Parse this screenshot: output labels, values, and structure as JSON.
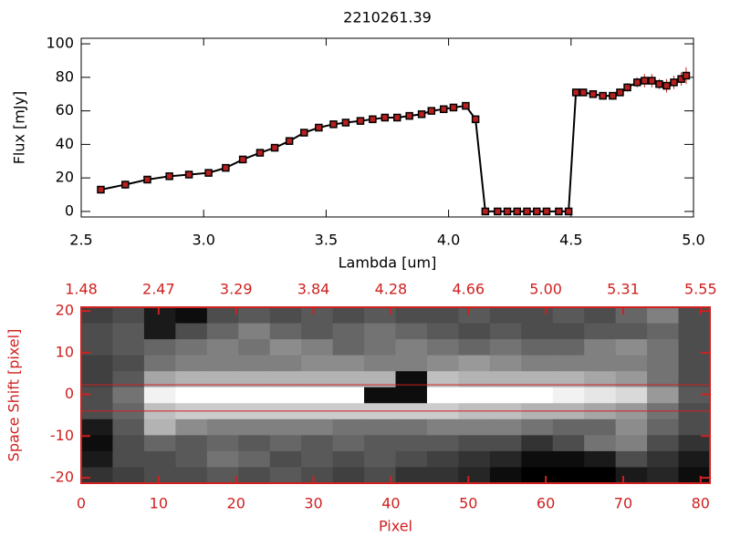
{
  "chart_data": [
    {
      "type": "line",
      "title": "2210261.39",
      "x_label": "Lambda [um]",
      "y_label": "Flux [mJy]",
      "xlim": [
        2.5,
        5.0
      ],
      "ylim": [
        -3.3,
        103.3
      ],
      "xticks": [
        {
          "value": 2.5,
          "label": "2.5"
        },
        {
          "value": 3,
          "label": "3.0"
        },
        {
          "value": 3.5,
          "label": "3.5"
        },
        {
          "value": 4,
          "label": "4.0"
        },
        {
          "value": 4.5,
          "label": "4.5"
        },
        {
          "value": 5,
          "label": "5.0"
        }
      ],
      "yticks": [
        0,
        20,
        40,
        60,
        80,
        100
      ],
      "x": [
        2.58,
        2.68,
        2.77,
        2.86,
        2.94,
        3.02,
        3.09,
        3.16,
        3.23,
        3.29,
        3.35,
        3.41,
        3.47,
        3.53,
        3.58,
        3.64,
        3.69,
        3.74,
        3.79,
        3.84,
        3.89,
        3.93,
        3.98,
        4.02,
        4.07,
        4.11,
        4.15,
        4.2,
        4.24,
        4.28,
        4.32,
        4.36,
        4.4,
        4.45,
        4.49,
        4.52,
        4.55,
        4.59,
        4.63,
        4.67,
        4.7,
        4.73,
        4.77,
        4.8,
        4.83,
        4.86,
        4.89,
        4.92,
        4.95,
        4.97
      ],
      "series": [
        {
          "color": "#000000",
          "marker_color": "#b82020",
          "error_color": "#d02020",
          "values": [
            13,
            16,
            19,
            21,
            22,
            23,
            26,
            31,
            35,
            38,
            42,
            47,
            50,
            52,
            53,
            54,
            55,
            56,
            56,
            57,
            58,
            60,
            61,
            62,
            63,
            55,
            0,
            0,
            0,
            0,
            0,
            0,
            0,
            0,
            0,
            71,
            71,
            70,
            69,
            69,
            71,
            74,
            77,
            78,
            78,
            76,
            75,
            77,
            79,
            81
          ],
          "errors": [
            1.5,
            2.5,
            2,
            2,
            1.5,
            1.5,
            1.5,
            2,
            2,
            1.5,
            1.5,
            1.5,
            1,
            1,
            1,
            1,
            1,
            1,
            1,
            1,
            1,
            1,
            1,
            1,
            1.5,
            1.5,
            0.5,
            0.5,
            0.5,
            0.5,
            0.5,
            0.5,
            0.5,
            0.5,
            0.5,
            1.5,
            1.5,
            1.5,
            1.5,
            1.5,
            2,
            2.5,
            3,
            4,
            4,
            3,
            4,
            4,
            4,
            5
          ]
        }
      ]
    },
    {
      "type": "heatmap",
      "x_label": "Pixel",
      "y_label": "Space Shift [pixel]",
      "xlim": [
        0,
        81.2
      ],
      "ylim": [
        -21.3,
        20.9
      ],
      "xticks": [
        0,
        10,
        20,
        30,
        40,
        50,
        60,
        70,
        80
      ],
      "yticks": [
        -20,
        -10,
        0,
        10,
        20
      ],
      "x2ticks": [
        {
          "value": 0,
          "label": "1.48"
        },
        {
          "value": 10,
          "label": "2.47"
        },
        {
          "value": 20,
          "label": "3.29"
        },
        {
          "value": 30,
          "label": "3.84"
        },
        {
          "value": 40,
          "label": "4.28"
        },
        {
          "value": 50,
          "label": "4.66"
        },
        {
          "value": 60,
          "label": "5.00"
        },
        {
          "value": 70,
          "label": "5.31"
        },
        {
          "value": 80,
          "label": "5.55"
        }
      ],
      "axis_color": "#d02020",
      "lines": [
        2.3,
        -4
      ],
      "line_color": "#d02020",
      "z": [
        [
          0.25,
          0.3,
          0.1,
          0.05,
          0.3,
          0.35,
          0.3,
          0.35,
          0.3,
          0.35,
          0.3,
          0.3,
          0.35,
          0.3,
          0.3,
          0.35,
          0.3,
          0.4,
          0.5,
          0.3
        ],
        [
          0.3,
          0.35,
          0.1,
          0.3,
          0.4,
          0.5,
          0.4,
          0.35,
          0.4,
          0.45,
          0.4,
          0.35,
          0.3,
          0.35,
          0.3,
          0.3,
          0.35,
          0.35,
          0.4,
          0.3
        ],
        [
          0.3,
          0.35,
          0.4,
          0.45,
          0.5,
          0.45,
          0.55,
          0.5,
          0.4,
          0.45,
          0.5,
          0.45,
          0.4,
          0.45,
          0.4,
          0.4,
          0.5,
          0.55,
          0.45,
          0.3
        ],
        [
          0.25,
          0.3,
          0.45,
          0.5,
          0.5,
          0.5,
          0.5,
          0.55,
          0.55,
          0.5,
          0.5,
          0.55,
          0.6,
          0.55,
          0.5,
          0.5,
          0.5,
          0.5,
          0.45,
          0.3
        ],
        [
          0.25,
          0.35,
          0.65,
          0.7,
          0.7,
          0.7,
          0.7,
          0.7,
          0.7,
          0.7,
          0.05,
          0.75,
          0.7,
          0.7,
          0.7,
          0.7,
          0.65,
          0.6,
          0.45,
          0.3
        ],
        [
          0.3,
          0.45,
          0.95,
          1,
          1,
          1,
          1,
          1,
          1,
          0.05,
          0.05,
          1,
          1,
          1,
          1,
          0.95,
          0.9,
          0.85,
          0.6,
          0.35
        ],
        [
          0.3,
          0.4,
          0.75,
          0.8,
          0.8,
          0.8,
          0.8,
          0.8,
          0.8,
          0.8,
          0.8,
          0.8,
          0.75,
          0.75,
          0.7,
          0.7,
          0.65,
          0.6,
          0.45,
          0.3
        ],
        [
          0.1,
          0.35,
          0.7,
          0.55,
          0.5,
          0.5,
          0.5,
          0.5,
          0.45,
          0.45,
          0.45,
          0.5,
          0.5,
          0.5,
          0.45,
          0.4,
          0.4,
          0.55,
          0.4,
          0.3
        ],
        [
          0.05,
          0.3,
          0.4,
          0.35,
          0.4,
          0.35,
          0.4,
          0.35,
          0.4,
          0.35,
          0.35,
          0.35,
          0.3,
          0.3,
          0.2,
          0.3,
          0.45,
          0.5,
          0.3,
          0.2
        ],
        [
          0.1,
          0.3,
          0.3,
          0.35,
          0.45,
          0.4,
          0.3,
          0.35,
          0.3,
          0.35,
          0.3,
          0.25,
          0.2,
          0.15,
          0.05,
          0.05,
          0.1,
          0.3,
          0.2,
          0.1
        ],
        [
          0.2,
          0.25,
          0.3,
          0.3,
          0.35,
          0.3,
          0.35,
          0.3,
          0.25,
          0.3,
          0.2,
          0.2,
          0.15,
          0.05,
          0,
          0,
          0,
          0.1,
          0.15,
          0.05
        ]
      ]
    }
  ]
}
